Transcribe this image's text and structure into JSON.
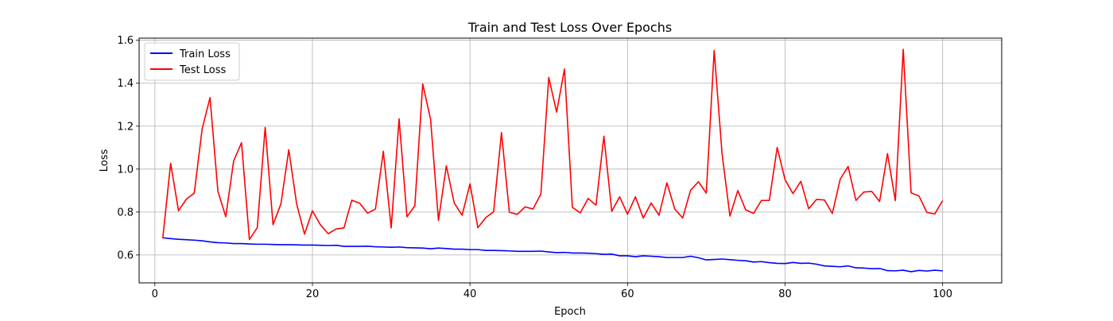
{
  "chart_data": {
    "type": "line",
    "title": "Train and Test Loss Over Epochs",
    "xlabel": "Epoch",
    "ylabel": "Loss",
    "xlim": [
      -2,
      107.5
    ],
    "ylim": [
      0.47,
      1.61
    ],
    "xticks": [
      0,
      20,
      40,
      60,
      80,
      100
    ],
    "yticks": [
      0.6,
      0.8,
      1.0,
      1.2,
      1.4,
      1.6
    ],
    "xtick_labels": [
      "0",
      "20",
      "40",
      "60",
      "80",
      "100"
    ],
    "ytick_labels": [
      "0.6",
      "0.8",
      "1.0",
      "1.2",
      "1.4",
      "1.6"
    ],
    "grid": true,
    "legend_position": "top-left",
    "x": [
      1,
      2,
      3,
      4,
      5,
      6,
      7,
      8,
      9,
      10,
      11,
      12,
      13,
      14,
      15,
      16,
      17,
      18,
      19,
      20,
      21,
      22,
      23,
      24,
      25,
      26,
      27,
      28,
      29,
      30,
      31,
      32,
      33,
      34,
      35,
      36,
      37,
      38,
      39,
      40,
      41,
      42,
      43,
      44,
      45,
      46,
      47,
      48,
      49,
      50,
      51,
      52,
      53,
      54,
      55,
      56,
      57,
      58,
      59,
      60,
      61,
      62,
      63,
      64,
      65,
      66,
      67,
      68,
      69,
      70,
      71,
      72,
      73,
      74,
      75,
      76,
      77,
      78,
      79,
      80,
      81,
      82,
      83,
      84,
      85,
      86,
      87,
      88,
      89,
      90,
      91,
      92,
      93,
      94,
      95,
      96,
      97,
      98,
      99,
      100
    ],
    "series": [
      {
        "name": "Train Loss",
        "color": "#0000ff",
        "values": [
          0.68,
          0.676,
          0.673,
          0.671,
          0.669,
          0.666,
          0.661,
          0.657,
          0.656,
          0.653,
          0.653,
          0.651,
          0.65,
          0.65,
          0.649,
          0.648,
          0.648,
          0.647,
          0.646,
          0.646,
          0.645,
          0.644,
          0.645,
          0.64,
          0.64,
          0.64,
          0.641,
          0.638,
          0.637,
          0.636,
          0.637,
          0.634,
          0.633,
          0.632,
          0.629,
          0.632,
          0.63,
          0.627,
          0.627,
          0.625,
          0.625,
          0.621,
          0.621,
          0.62,
          0.619,
          0.617,
          0.617,
          0.617,
          0.618,
          0.614,
          0.611,
          0.612,
          0.609,
          0.609,
          0.608,
          0.606,
          0.603,
          0.604,
          0.596,
          0.596,
          0.592,
          0.596,
          0.594,
          0.592,
          0.588,
          0.588,
          0.588,
          0.594,
          0.587,
          0.577,
          0.579,
          0.581,
          0.578,
          0.575,
          0.573,
          0.567,
          0.569,
          0.564,
          0.561,
          0.56,
          0.565,
          0.561,
          0.562,
          0.557,
          0.549,
          0.547,
          0.545,
          0.549,
          0.54,
          0.539,
          0.536,
          0.537,
          0.527,
          0.526,
          0.529,
          0.522,
          0.528,
          0.525,
          0.529,
          0.526
        ]
      },
      {
        "name": "Test Loss",
        "color": "#ff0000",
        "values": [
          0.678,
          1.027,
          0.806,
          0.86,
          0.888,
          1.187,
          1.333,
          0.897,
          0.778,
          1.038,
          1.123,
          0.672,
          0.727,
          1.194,
          0.741,
          0.838,
          1.09,
          0.837,
          0.697,
          0.806,
          0.741,
          0.699,
          0.721,
          0.726,
          0.855,
          0.841,
          0.795,
          0.814,
          1.083,
          0.726,
          1.234,
          0.778,
          0.829,
          1.397,
          1.232,
          0.761,
          1.015,
          0.842,
          0.785,
          0.931,
          0.727,
          0.774,
          0.801,
          1.17,
          0.799,
          0.789,
          0.824,
          0.814,
          0.884,
          1.427,
          1.265,
          1.466,
          0.822,
          0.796,
          0.863,
          0.832,
          1.153,
          0.803,
          0.871,
          0.79,
          0.871,
          0.772,
          0.842,
          0.785,
          0.936,
          0.814,
          0.772,
          0.901,
          0.941,
          0.888,
          1.553,
          1.072,
          0.781,
          0.9,
          0.81,
          0.794,
          0.854,
          0.854,
          1.101,
          0.95,
          0.886,
          0.943,
          0.815,
          0.859,
          0.856,
          0.793,
          0.953,
          1.012,
          0.854,
          0.893,
          0.896,
          0.849,
          1.072,
          0.853,
          1.558,
          0.889,
          0.875,
          0.798,
          0.791,
          0.853
        ]
      }
    ]
  }
}
